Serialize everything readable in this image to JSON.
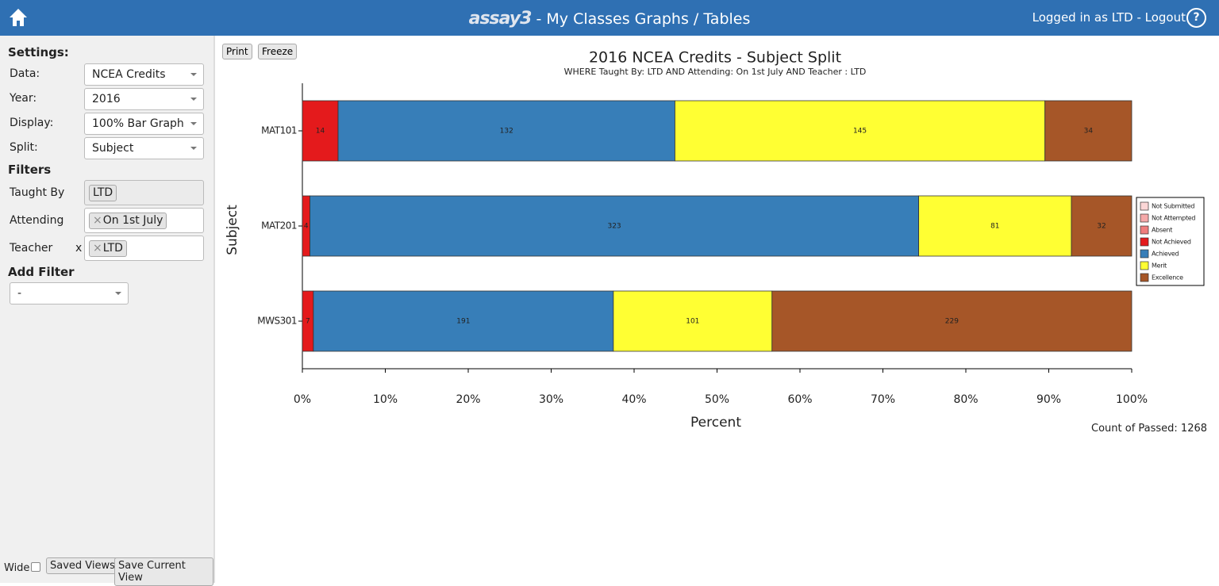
{
  "header": {
    "brand": "assay3",
    "title": "- My Classes Graphs / Tables",
    "login": "Logged in as LTD - Logout",
    "help": "?"
  },
  "sidebar": {
    "settings_heading": "Settings:",
    "settings": [
      {
        "label": "Data:",
        "value": "NCEA Credits"
      },
      {
        "label": "Year:",
        "value": "2016"
      },
      {
        "label": "Display:",
        "value": "100% Bar Graph"
      },
      {
        "label": "Split:",
        "value": "Subject"
      }
    ],
    "filters_heading": "Filters",
    "filters": [
      {
        "label": "Taught By",
        "tags": [
          "LTD"
        ]
      },
      {
        "label": "Attending",
        "tags": [
          "On 1st July"
        ]
      },
      {
        "label": "Teacher",
        "remove": "x",
        "tags": [
          "LTD"
        ]
      }
    ],
    "add_filter_heading": "Add Filter",
    "add_filter_value": "-",
    "wide_label": "Wide",
    "buttons": [
      "Saved Views",
      "Save Current View"
    ]
  },
  "toolbar": {
    "buttons": [
      "Print",
      "Freeze"
    ]
  },
  "chart_data": {
    "type": "bar",
    "orientation": "horizontal",
    "stack": "percent",
    "title": "2016 NCEA Credits - Subject Split",
    "subtitle": "WHERE Taught By: LTD AND Attending: On 1st July AND Teacher : LTD",
    "xlabel": "Percent",
    "ylabel": "Subject",
    "categories": [
      "MAT101",
      "MAT201",
      "MWS301"
    ],
    "series": [
      {
        "name": "Not Submitted",
        "color": "#fbd6d6",
        "values": [
          0,
          0,
          0
        ]
      },
      {
        "name": "Not Attempted",
        "color": "#f5a9a9",
        "values": [
          0,
          0,
          0
        ]
      },
      {
        "name": "Absent",
        "color": "#ef7d7d",
        "values": [
          0,
          0,
          0
        ]
      },
      {
        "name": "Not Achieved",
        "color": "#e41a1c",
        "values": [
          14,
          4,
          7
        ]
      },
      {
        "name": "Achieved",
        "color": "#377eb8",
        "values": [
          132,
          323,
          191
        ]
      },
      {
        "name": "Merit",
        "color": "#ffff33",
        "values": [
          145,
          81,
          101
        ]
      },
      {
        "name": "Excellence",
        "color": "#a65628",
        "values": [
          34,
          32,
          229
        ]
      }
    ],
    "xlim": [
      0,
      100
    ],
    "xticks": [
      {
        "value": 0,
        "label": "0%"
      },
      {
        "value": 10,
        "label": "10%"
      },
      {
        "value": 20,
        "label": "20%"
      },
      {
        "value": 30,
        "label": "30%"
      },
      {
        "value": 40,
        "label": "40%"
      },
      {
        "value": 50,
        "label": "50%"
      },
      {
        "value": 60,
        "label": "60%"
      },
      {
        "value": 70,
        "label": "70%"
      },
      {
        "value": 80,
        "label": "80%"
      },
      {
        "value": 90,
        "label": "90%"
      },
      {
        "value": 100,
        "label": "100%"
      }
    ],
    "legend": "right"
  },
  "footer_note": "Count of Passed: 1268"
}
